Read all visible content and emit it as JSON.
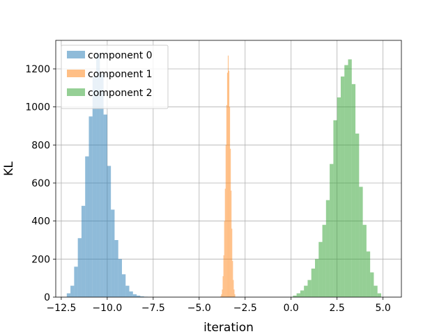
{
  "chart_data": {
    "type": "bar",
    "title": "",
    "xlabel": "iteration",
    "ylabel": "KL",
    "xlim": [
      -12.8,
      6.0
    ],
    "ylim": [
      0,
      1350
    ],
    "grid": true,
    "legend_placement": "top-left",
    "x_ticks": [
      -12.5,
      -10.0,
      -7.5,
      -5.0,
      -2.5,
      0.0,
      2.5,
      5.0
    ],
    "x_tick_labels": [
      "−12.5",
      "−10.0",
      "−7.5",
      "−5.0",
      "−2.5",
      "0.0",
      "2.5",
      "5.0"
    ],
    "y_ticks": [
      0,
      200,
      400,
      600,
      800,
      1000,
      1200
    ],
    "y_tick_labels": [
      "0",
      "200",
      "400",
      "600",
      "800",
      "1000",
      "1200"
    ],
    "series": [
      {
        "name": "component 0",
        "color": "#1f77b4",
        "alpha": 0.5,
        "bin_start": -12.2,
        "bin_width": 0.2,
        "values": [
          20,
          60,
          160,
          310,
          480,
          740,
          950,
          1160,
          1280,
          1170,
          960,
          690,
          460,
          300,
          200,
          120,
          60,
          30,
          15,
          8,
          4,
          2
        ]
      },
      {
        "name": "component 1",
        "color": "#ff7f0e",
        "alpha": 0.5,
        "bin_start": -3.84,
        "bin_width": 0.04,
        "values": [
          5,
          15,
          40,
          110,
          220,
          400,
          570,
          800,
          1010,
          1180,
          1270,
          1190,
          1000,
          780,
          560,
          360,
          190,
          90,
          40,
          15
        ]
      },
      {
        "name": "component 2",
        "color": "#2ca02c",
        "alpha": 0.5,
        "bin_start": 0.1,
        "bin_width": 0.2,
        "values": [
          8,
          20,
          35,
          60,
          90,
          150,
          200,
          290,
          380,
          510,
          700,
          930,
          1050,
          1160,
          1220,
          1250,
          1120,
          860,
          580,
          380,
          240,
          130,
          60,
          20
        ]
      }
    ]
  }
}
